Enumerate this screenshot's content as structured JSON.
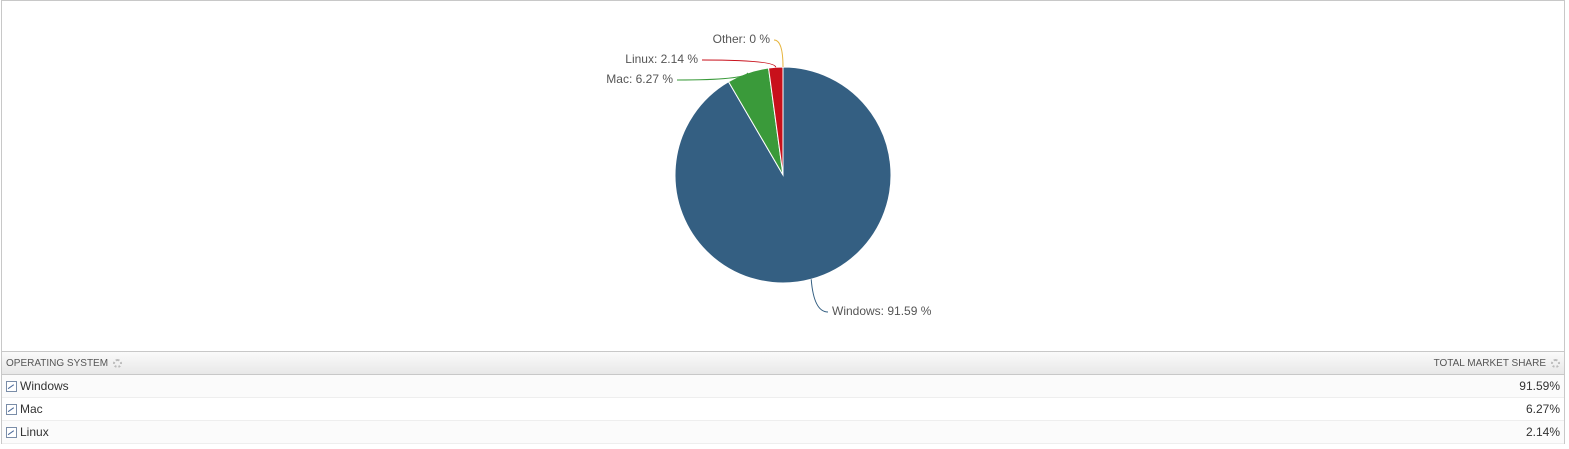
{
  "chart_data": {
    "type": "pie",
    "values": [
      91.59,
      6.27,
      2.14,
      0
    ],
    "value_labels": [
      "Windows: 91.59 %",
      "Mac: 6.27 %",
      "Linux: 2.14 %",
      "Other: 0 %"
    ],
    "colors": [
      "#345f82",
      "#3a9a3a",
      "#c8101b",
      "#e6b43c"
    ]
  },
  "table": {
    "columns": [
      "OPERATING SYSTEM",
      "TOTAL MARKET SHARE"
    ],
    "rows": [
      [
        "Windows",
        "91.59%"
      ],
      [
        "Mac",
        "6.27%"
      ],
      [
        "Linux",
        "2.14%"
      ]
    ]
  }
}
